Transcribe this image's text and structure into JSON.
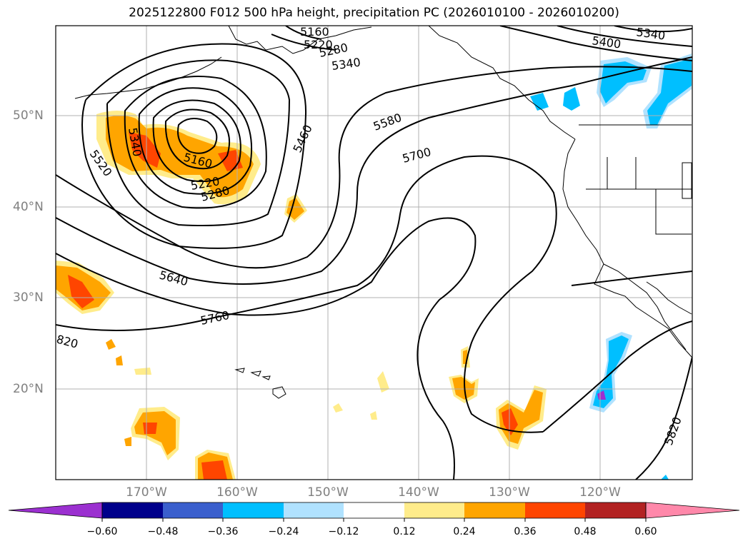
{
  "title": "2025122800 F012 500 hPa height, precipitation PC (2026010100 - 2026010200)",
  "lat_labels": [
    "50°N",
    "40°N",
    "30°N",
    "20°N"
  ],
  "lon_labels": [
    "170°W",
    "160°W",
    "150°W",
    "140°W",
    "130°W",
    "120°W"
  ],
  "contour_labels": [
    "5160",
    "5220",
    "5280",
    "5340",
    "5400",
    "5340",
    "5580",
    "5700",
    "5460",
    "5340",
    "5520",
    "5160",
    "5220",
    "5280",
    "5640",
    "5760",
    "820",
    "5820"
  ],
  "colorbar": {
    "ticks": [
      "−0.60",
      "−0.48",
      "−0.36",
      "−0.24",
      "−0.12",
      "0.12",
      "0.24",
      "0.36",
      "0.48",
      "0.60"
    ],
    "colors": [
      "#9b30d0",
      "#00008b",
      "#3a5fcd",
      "#00bfff",
      "#b0e2ff",
      "#ffffff",
      "#ffec8b",
      "#ffa500",
      "#ff4500",
      "#b22222",
      "#ff88aa"
    ]
  },
  "colors": {
    "light_yellow": "#ffec8b",
    "orange": "#ffa500",
    "red_orange": "#ff4500",
    "sky_blue": "#00bfff",
    "light_blue": "#b0e2ff",
    "purple": "#9b30d0",
    "grid": "#b0b0b0"
  }
}
